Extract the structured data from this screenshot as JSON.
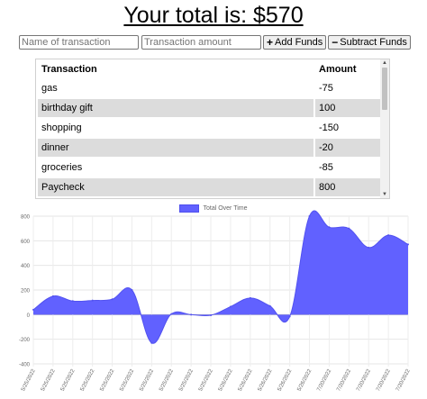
{
  "header": {
    "total_text": "Your total is: $570"
  },
  "form": {
    "name_placeholder": "Name of transaction",
    "amount_placeholder": "Transaction amount",
    "add_label": "Add Funds",
    "subtract_label": "Subtract Funds"
  },
  "table": {
    "headers": [
      "Transaction",
      "Amount"
    ],
    "rows": [
      {
        "name": "gas",
        "amount": "-75"
      },
      {
        "name": "birthday gift",
        "amount": "100"
      },
      {
        "name": "shopping",
        "amount": "-150"
      },
      {
        "name": "dinner",
        "amount": "-20"
      },
      {
        "name": "groceries",
        "amount": "-85"
      },
      {
        "name": "Paycheck",
        "amount": "800"
      }
    ]
  },
  "chart_data": {
    "type": "area",
    "legend": "Total Over Time",
    "color": "#6161ff",
    "ylim": [
      -400,
      800
    ],
    "yticks": [
      -400,
      -200,
      0,
      200,
      400,
      600,
      800
    ],
    "x": [
      "5/25/2022",
      "5/25/2022",
      "5/25/2022",
      "5/25/2022",
      "5/25/2022",
      "5/25/2022",
      "5/25/2022",
      "5/25/2022",
      "5/25/2022",
      "5/25/2022",
      "5/26/2022",
      "5/26/2022",
      "5/26/2022",
      "5/26/2022",
      "5/26/2022",
      "7/20/2022",
      "7/20/2022",
      "7/20/2022",
      "7/20/2022",
      "7/20/2022"
    ],
    "values": [
      40,
      150,
      110,
      115,
      125,
      200,
      -230,
      5,
      0,
      -5,
      65,
      135,
      70,
      -15,
      800,
      710,
      700,
      545,
      645,
      570
    ]
  }
}
